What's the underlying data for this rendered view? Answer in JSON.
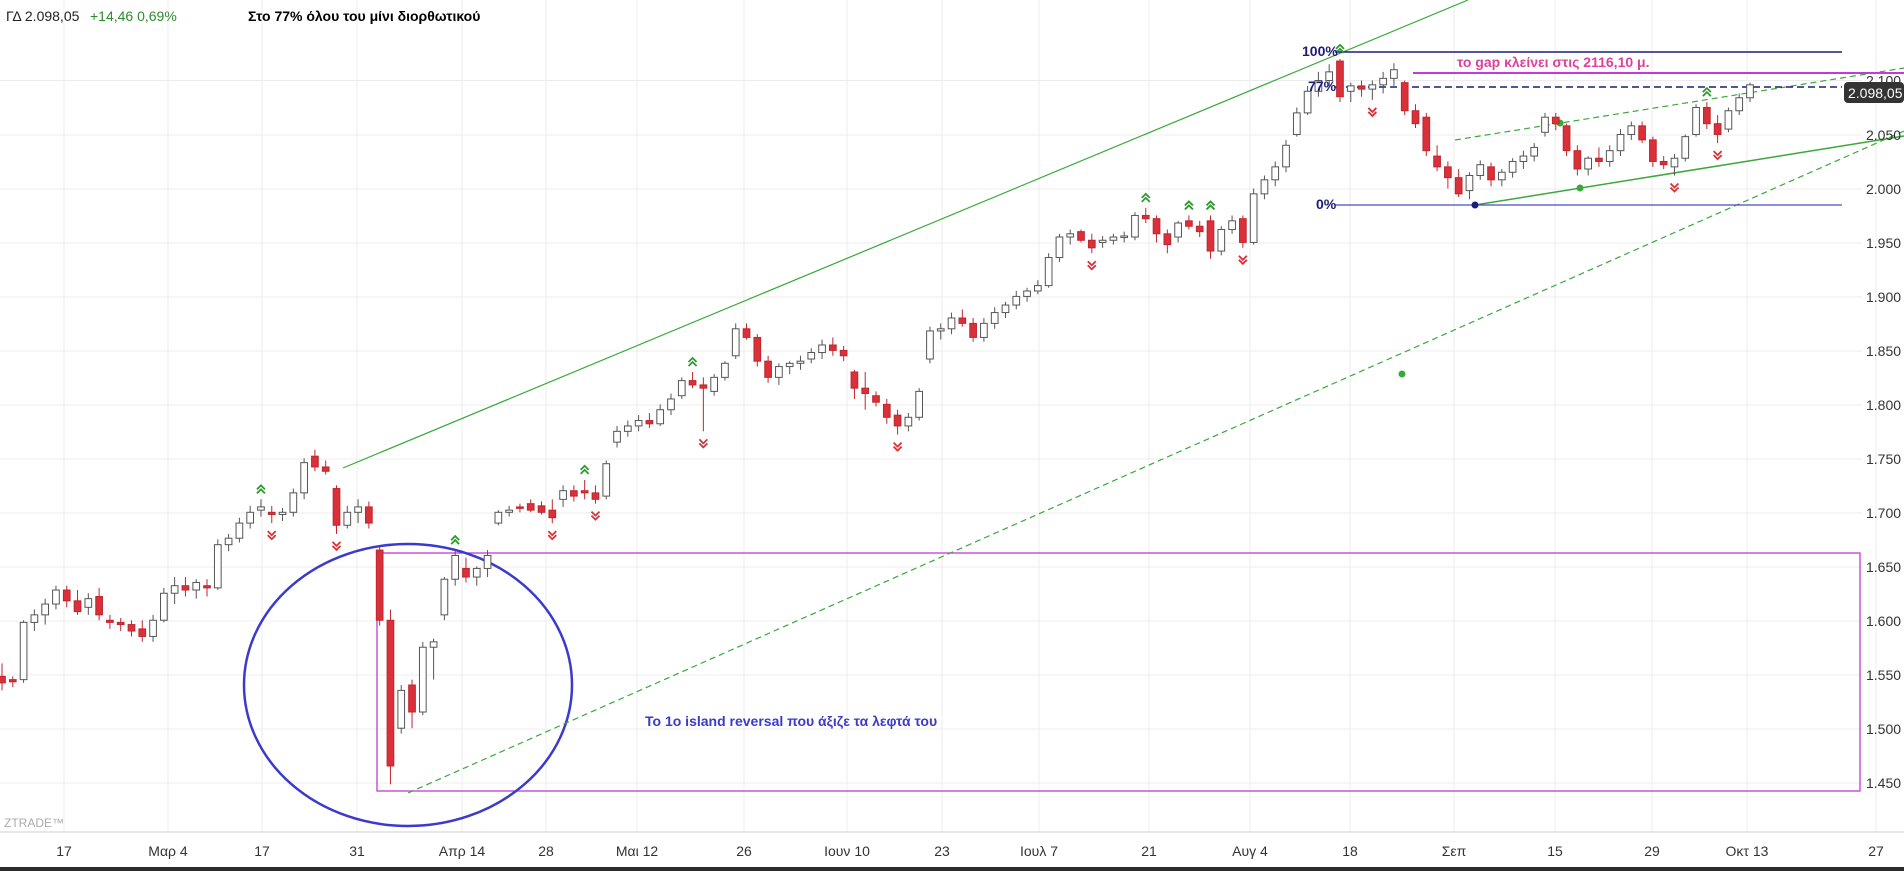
{
  "header": {
    "symbol": "ΓΔ 2.098,05",
    "change": "+14,46 0,69%",
    "title": "Στο 77% όλου του μίνι διορθωτικού"
  },
  "watermark": "ZTRADE™",
  "colors": {
    "up_fill": "#ffffff",
    "up_border": "#555555",
    "down_fill": "#d9303a",
    "trend": "#3aa83a",
    "box": "#c43ad6",
    "circle": "#3a3acc",
    "fib": "#1c1c7a",
    "gap": "#e0409a",
    "price_tag": "#333333"
  },
  "chart_data": {
    "type": "candlestick",
    "title": "Στο 77% όλου του μίνι διορθωτικού",
    "x_ticks": [
      "17",
      "Μαρ 4",
      "17",
      "31",
      "Απρ 14",
      "28",
      "Μαι 12",
      "26",
      "Ιουν 10",
      "23",
      "Ιουλ 7",
      "21",
      "Αυγ 4",
      "18",
      "Σεπ",
      "15",
      "29",
      "Οκτ 13",
      "27"
    ],
    "y_ticks": [
      "2.100",
      "2.050",
      "2.000",
      "1.950",
      "1.900",
      "1.850",
      "1.800",
      "1.750",
      "1.700",
      "1.650",
      "1.600",
      "1.550",
      "1.500",
      "1.450"
    ],
    "ylim": [
      1430,
      2130
    ],
    "last_price": "2.098,05",
    "candles": [
      [
        1548,
        1560,
        1535,
        1542
      ],
      [
        1545,
        1548,
        1538,
        1543
      ],
      [
        1545,
        1600,
        1542,
        1598
      ],
      [
        1598,
        1610,
        1590,
        1605
      ],
      [
        1605,
        1620,
        1596,
        1615
      ],
      [
        1615,
        1632,
        1610,
        1628
      ],
      [
        1628,
        1632,
        1612,
        1618
      ],
      [
        1618,
        1628,
        1605,
        1608
      ],
      [
        1612,
        1625,
        1605,
        1620
      ],
      [
        1622,
        1630,
        1600,
        1605
      ],
      [
        1600,
        1605,
        1592,
        1598
      ],
      [
        1598,
        1602,
        1590,
        1596
      ],
      [
        1596,
        1600,
        1585,
        1590
      ],
      [
        1592,
        1600,
        1580,
        1585
      ],
      [
        1585,
        1605,
        1580,
        1600
      ],
      [
        1600,
        1630,
        1598,
        1625
      ],
      [
        1625,
        1640,
        1615,
        1632
      ],
      [
        1632,
        1640,
        1622,
        1628
      ],
      [
        1628,
        1638,
        1620,
        1635
      ],
      [
        1632,
        1638,
        1622,
        1630
      ],
      [
        1630,
        1675,
        1628,
        1670
      ],
      [
        1670,
        1680,
        1664,
        1676
      ],
      [
        1676,
        1695,
        1672,
        1690
      ],
      [
        1690,
        1706,
        1685,
        1700
      ],
      [
        1702,
        1712,
        1696,
        1705
      ],
      [
        1700,
        1706,
        1690,
        1698
      ],
      [
        1698,
        1704,
        1692,
        1700
      ],
      [
        1700,
        1722,
        1696,
        1718
      ],
      [
        1718,
        1750,
        1712,
        1746
      ],
      [
        1752,
        1758,
        1738,
        1742
      ],
      [
        1742,
        1748,
        1735,
        1738
      ],
      [
        1722,
        1725,
        1680,
        1688
      ],
      [
        1688,
        1706,
        1685,
        1700
      ],
      [
        1700,
        1712,
        1690,
        1705
      ],
      [
        1705,
        1710,
        1685,
        1690
      ],
      [
        1665,
        1668,
        1595,
        1600
      ],
      [
        1600,
        1610,
        1448,
        1465
      ],
      [
        1500,
        1540,
        1495,
        1535
      ],
      [
        1540,
        1545,
        1500,
        1515
      ],
      [
        1515,
        1580,
        1512,
        1575
      ],
      [
        1575,
        1583,
        1545,
        1580
      ],
      [
        1605,
        1640,
        1600,
        1638
      ],
      [
        1638,
        1665,
        1632,
        1660
      ],
      [
        1648,
        1658,
        1635,
        1640
      ],
      [
        1640,
        1650,
        1632,
        1648
      ],
      [
        1648,
        1665,
        1640,
        1660
      ],
      [
        1690,
        1702,
        1688,
        1700
      ],
      [
        1700,
        1706,
        1696,
        1702
      ],
      [
        1705,
        1708,
        1700,
        1704
      ],
      [
        1708,
        1712,
        1700,
        1702
      ],
      [
        1706,
        1710,
        1698,
        1700
      ],
      [
        1702,
        1712,
        1690,
        1695
      ],
      [
        1712,
        1725,
        1705,
        1720
      ],
      [
        1720,
        1725,
        1710,
        1715
      ],
      [
        1720,
        1730,
        1712,
        1718
      ],
      [
        1718,
        1725,
        1708,
        1712
      ],
      [
        1715,
        1748,
        1712,
        1745
      ],
      [
        1765,
        1780,
        1760,
        1775
      ],
      [
        1775,
        1785,
        1770,
        1780
      ],
      [
        1780,
        1790,
        1775,
        1785
      ],
      [
        1785,
        1792,
        1778,
        1782
      ],
      [
        1782,
        1800,
        1780,
        1795
      ],
      [
        1795,
        1810,
        1790,
        1805
      ],
      [
        1808,
        1825,
        1805,
        1822
      ],
      [
        1822,
        1830,
        1815,
        1818
      ],
      [
        1818,
        1825,
        1775,
        1815
      ],
      [
        1812,
        1828,
        1808,
        1825
      ],
      [
        1825,
        1840,
        1822,
        1838
      ],
      [
        1845,
        1875,
        1842,
        1870
      ],
      [
        1870,
        1875,
        1860,
        1862
      ],
      [
        1862,
        1865,
        1835,
        1840
      ],
      [
        1840,
        1845,
        1820,
        1825
      ],
      [
        1825,
        1838,
        1818,
        1835
      ],
      [
        1835,
        1840,
        1828,
        1838
      ],
      [
        1838,
        1845,
        1832,
        1840
      ],
      [
        1842,
        1852,
        1838,
        1848
      ],
      [
        1848,
        1860,
        1842,
        1855
      ],
      [
        1855,
        1862,
        1845,
        1850
      ],
      [
        1850,
        1854,
        1840,
        1845
      ],
      [
        1830,
        1832,
        1805,
        1815
      ],
      [
        1815,
        1830,
        1795,
        1810
      ],
      [
        1808,
        1812,
        1798,
        1802
      ],
      [
        1800,
        1805,
        1782,
        1788
      ],
      [
        1790,
        1795,
        1772,
        1780
      ],
      [
        1780,
        1792,
        1775,
        1788
      ],
      [
        1788,
        1815,
        1785,
        1812
      ],
      [
        1842,
        1872,
        1838,
        1868
      ],
      [
        1868,
        1875,
        1860,
        1870
      ],
      [
        1870,
        1885,
        1865,
        1880
      ],
      [
        1880,
        1888,
        1872,
        1875
      ],
      [
        1875,
        1880,
        1858,
        1862
      ],
      [
        1862,
        1880,
        1858,
        1875
      ],
      [
        1875,
        1890,
        1870,
        1885
      ],
      [
        1885,
        1895,
        1880,
        1892
      ],
      [
        1892,
        1905,
        1888,
        1900
      ],
      [
        1900,
        1908,
        1895,
        1905
      ],
      [
        1905,
        1915,
        1902,
        1910
      ],
      [
        1910,
        1940,
        1908,
        1936
      ],
      [
        1936,
        1958,
        1932,
        1955
      ],
      [
        1955,
        1962,
        1948,
        1958
      ],
      [
        1960,
        1962,
        1950,
        1952
      ],
      [
        1952,
        1958,
        1940,
        1945
      ],
      [
        1950,
        1956,
        1945,
        1952
      ],
      [
        1952,
        1958,
        1948,
        1955
      ],
      [
        1955,
        1960,
        1950,
        1956
      ],
      [
        1955,
        1978,
        1952,
        1975
      ],
      [
        1975,
        1982,
        1968,
        1972
      ],
      [
        1972,
        1975,
        1950,
        1958
      ],
      [
        1958,
        1962,
        1940,
        1948
      ],
      [
        1955,
        1970,
        1950,
        1968
      ],
      [
        1970,
        1975,
        1962,
        1965
      ],
      [
        1965,
        1970,
        1955,
        1960
      ],
      [
        1970,
        1975,
        1935,
        1942
      ],
      [
        1942,
        1965,
        1938,
        1962
      ],
      [
        1962,
        1975,
        1958,
        1970
      ],
      [
        1972,
        1975,
        1945,
        1950
      ],
      [
        1950,
        2000,
        1948,
        1995
      ],
      [
        1995,
        2012,
        1990,
        2008
      ],
      [
        2008,
        2025,
        2002,
        2020
      ],
      [
        2020,
        2045,
        2015,
        2040
      ],
      [
        2050,
        2075,
        2048,
        2070
      ],
      [
        2070,
        2095,
        2068,
        2090
      ],
      [
        2090,
        2108,
        2085,
        2100
      ],
      [
        2100,
        2115,
        2095,
        2108
      ],
      [
        2118,
        2120,
        2080,
        2085
      ],
      [
        2090,
        2098,
        2080,
        2095
      ],
      [
        2095,
        2100,
        2085,
        2092
      ],
      [
        2092,
        2100,
        2082,
        2096
      ],
      [
        2096,
        2108,
        2088,
        2102
      ],
      [
        2102,
        2116,
        2095,
        2110
      ],
      [
        2098,
        2100,
        2068,
        2072
      ],
      [
        2072,
        2078,
        2056,
        2060
      ],
      [
        2066,
        2070,
        2030,
        2035
      ],
      [
        2030,
        2040,
        2016,
        2020
      ],
      [
        2020,
        2025,
        2000,
        2010
      ],
      [
        2010,
        2018,
        1992,
        1995
      ],
      [
        1998,
        2015,
        1990,
        2012
      ],
      [
        2012,
        2026,
        2008,
        2022
      ],
      [
        2020,
        2024,
        2002,
        2008
      ],
      [
        2008,
        2018,
        2002,
        2015
      ],
      [
        2015,
        2028,
        2010,
        2025
      ],
      [
        2025,
        2035,
        2018,
        2030
      ],
      [
        2030,
        2042,
        2025,
        2038
      ],
      [
        2052,
        2070,
        2048,
        2066
      ],
      [
        2066,
        2070,
        2054,
        2060
      ],
      [
        2058,
        2060,
        2030,
        2035
      ],
      [
        2035,
        2040,
        2012,
        2018
      ],
      [
        2018,
        2030,
        2012,
        2028
      ],
      [
        2028,
        2038,
        2020,
        2025
      ],
      [
        2025,
        2040,
        2020,
        2035
      ],
      [
        2035,
        2055,
        2030,
        2050
      ],
      [
        2050,
        2062,
        2045,
        2058
      ],
      [
        2058,
        2062,
        2042,
        2045
      ],
      [
        2045,
        2048,
        2020,
        2025
      ],
      [
        2025,
        2030,
        2018,
        2022
      ],
      [
        2020,
        2032,
        2012,
        2028
      ],
      [
        2028,
        2050,
        2025,
        2048
      ],
      [
        2050,
        2078,
        2048,
        2075
      ],
      [
        2075,
        2080,
        2055,
        2060
      ],
      [
        2060,
        2068,
        2042,
        2050
      ],
      [
        2055,
        2075,
        2052,
        2072
      ],
      [
        2072,
        2088,
        2068,
        2084
      ],
      [
        2084,
        2098,
        2080,
        2096
      ]
    ]
  },
  "annotations": {
    "fib_100": "100%",
    "fib_77": "77%",
    "fib_0": "0%",
    "gap_text": "το gap κλείνει στις 2116,10 μ.",
    "island_text": "Το 1ο island reversal που άξιζε τα λεφτά του"
  }
}
